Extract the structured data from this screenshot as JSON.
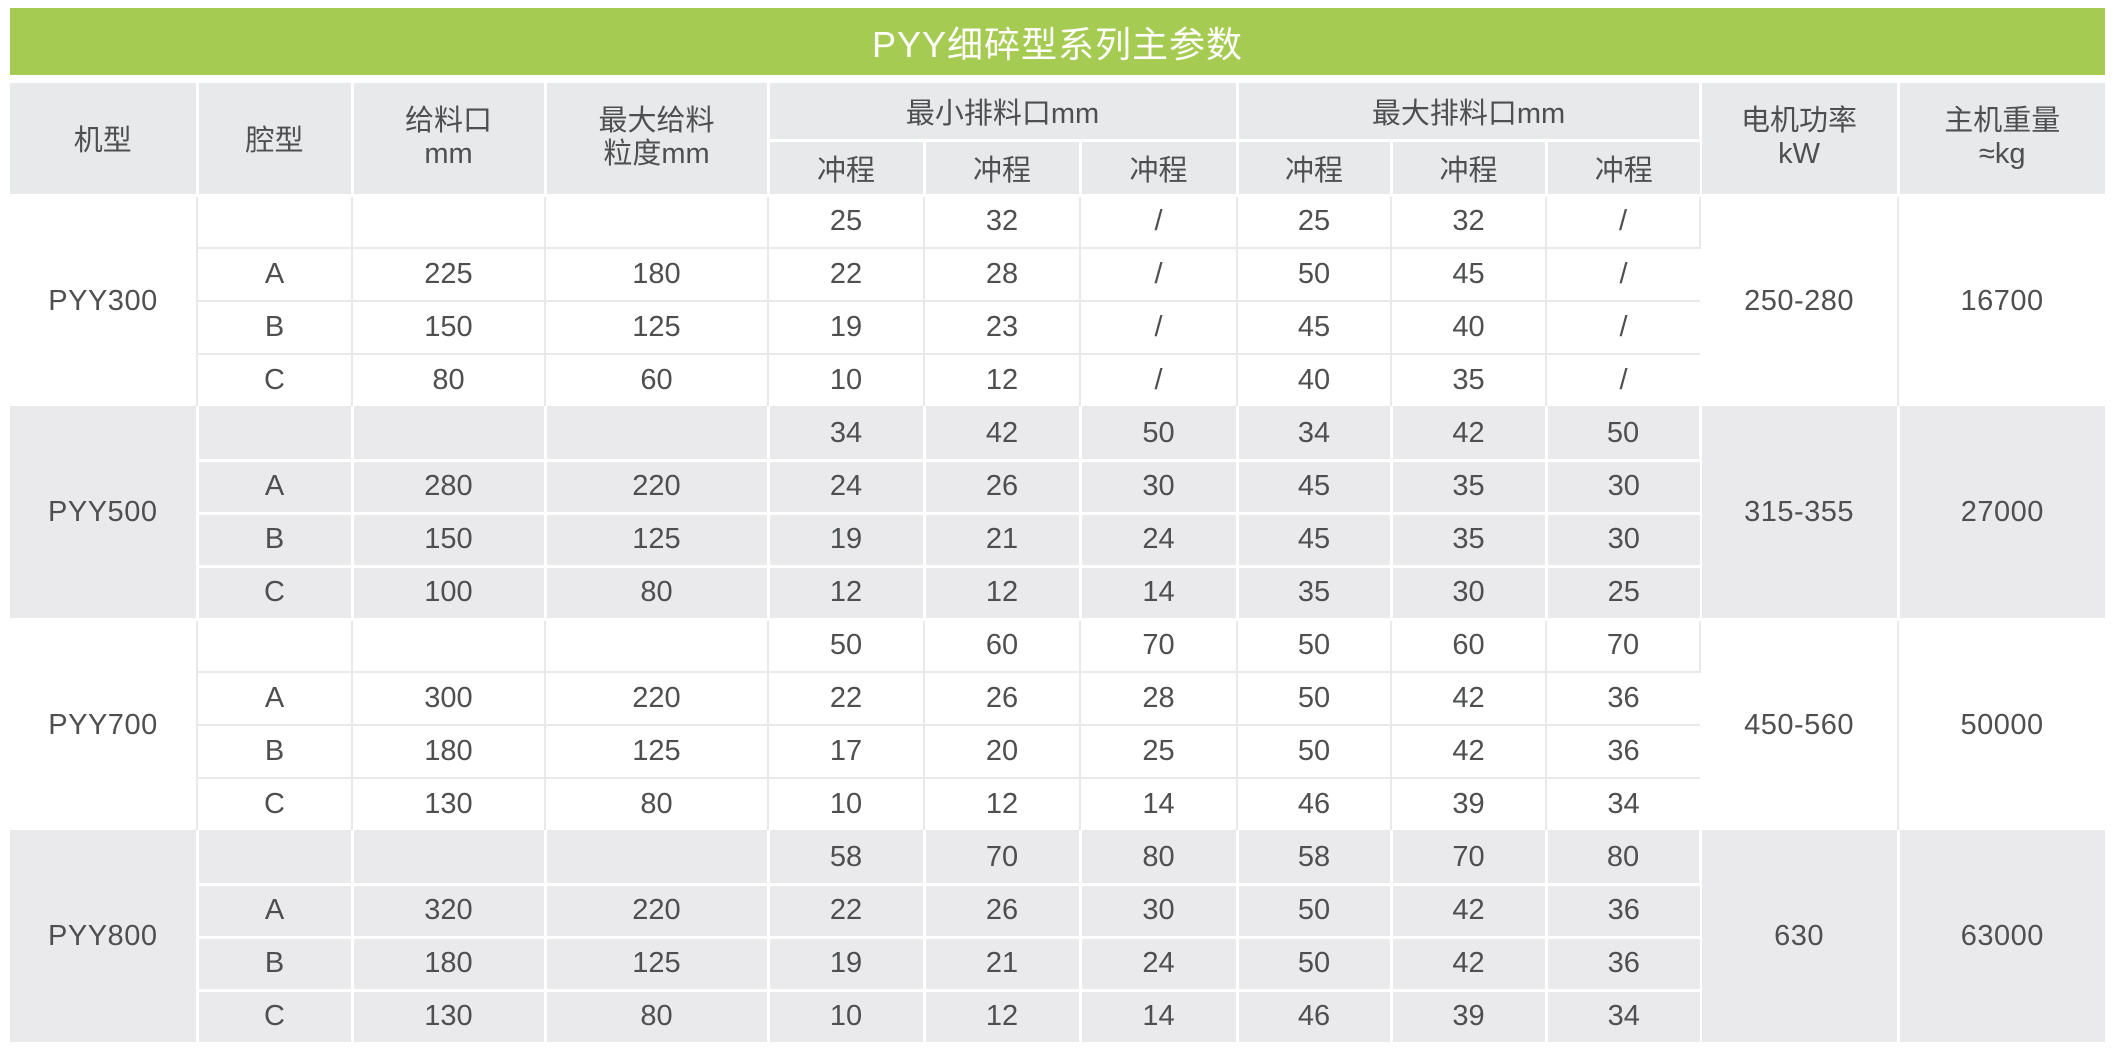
{
  "title": "PYY细碎型系列主参数",
  "colors": {
    "accent_green": "#a6cb52",
    "title_text": "#ffffff",
    "header_bg": "#e8e9eb",
    "shaded_row_bg": "#eaeaec",
    "text": "#4e4f51",
    "grid_line_on_white": "#e9e9ec",
    "grid_line_on_gray": "#ffffff"
  },
  "columns": {
    "model": "机型",
    "cavity": "腔型",
    "feed_opening": "给料口\nmm",
    "max_feed_size": "最大给料\n粒度mm",
    "min_discharge_group": "最小排料口mm",
    "max_discharge_group": "最大排料口mm",
    "stroke": "冲程",
    "motor_power": "电机功率\nkW",
    "weight": "主机重量\n≈kg"
  },
  "groups": [
    {
      "model": "PYY300",
      "power": "250-280",
      "weight": "16700",
      "rows": [
        {
          "cavity": "",
          "feed": "",
          "size": "",
          "min": [
            "25",
            "32",
            "/"
          ],
          "max": [
            "25",
            "32",
            "/"
          ]
        },
        {
          "cavity": "A",
          "feed": "225",
          "size": "180",
          "min": [
            "22",
            "28",
            "/"
          ],
          "max": [
            "50",
            "45",
            "/"
          ]
        },
        {
          "cavity": "B",
          "feed": "150",
          "size": "125",
          "min": [
            "19",
            "23",
            "/"
          ],
          "max": [
            "45",
            "40",
            "/"
          ]
        },
        {
          "cavity": "C",
          "feed": "80",
          "size": "60",
          "min": [
            "10",
            "12",
            "/"
          ],
          "max": [
            "40",
            "35",
            "/"
          ]
        }
      ]
    },
    {
      "model": "PYY500",
      "power": "315-355",
      "weight": "27000",
      "rows": [
        {
          "cavity": "",
          "feed": "",
          "size": "",
          "min": [
            "34",
            "42",
            "50"
          ],
          "max": [
            "34",
            "42",
            "50"
          ]
        },
        {
          "cavity": "A",
          "feed": "280",
          "size": "220",
          "min": [
            "24",
            "26",
            "30"
          ],
          "max": [
            "45",
            "35",
            "30"
          ]
        },
        {
          "cavity": "B",
          "feed": "150",
          "size": "125",
          "min": [
            "19",
            "21",
            "24"
          ],
          "max": [
            "45",
            "35",
            "30"
          ]
        },
        {
          "cavity": "C",
          "feed": "100",
          "size": "80",
          "min": [
            "12",
            "12",
            "14"
          ],
          "max": [
            "35",
            "30",
            "25"
          ]
        }
      ]
    },
    {
      "model": "PYY700",
      "power": "450-560",
      "weight": "50000",
      "rows": [
        {
          "cavity": "",
          "feed": "",
          "size": "",
          "min": [
            "50",
            "60",
            "70"
          ],
          "max": [
            "50",
            "60",
            "70"
          ]
        },
        {
          "cavity": "A",
          "feed": "300",
          "size": "220",
          "min": [
            "22",
            "26",
            "28"
          ],
          "max": [
            "50",
            "42",
            "36"
          ]
        },
        {
          "cavity": "B",
          "feed": "180",
          "size": "125",
          "min": [
            "17",
            "20",
            "25"
          ],
          "max": [
            "50",
            "42",
            "36"
          ]
        },
        {
          "cavity": "C",
          "feed": "130",
          "size": "80",
          "min": [
            "10",
            "12",
            "14"
          ],
          "max": [
            "46",
            "39",
            "34"
          ]
        }
      ]
    },
    {
      "model": "PYY800",
      "power": "630",
      "weight": "63000",
      "rows": [
        {
          "cavity": "",
          "feed": "",
          "size": "",
          "min": [
            "58",
            "70",
            "80"
          ],
          "max": [
            "58",
            "70",
            "80"
          ]
        },
        {
          "cavity": "A",
          "feed": "320",
          "size": "220",
          "min": [
            "22",
            "26",
            "30"
          ],
          "max": [
            "50",
            "42",
            "36"
          ]
        },
        {
          "cavity": "B",
          "feed": "180",
          "size": "125",
          "min": [
            "19",
            "21",
            "24"
          ],
          "max": [
            "50",
            "42",
            "36"
          ]
        },
        {
          "cavity": "C",
          "feed": "130",
          "size": "80",
          "min": [
            "10",
            "12",
            "14"
          ],
          "max": [
            "46",
            "39",
            "34"
          ]
        }
      ]
    }
  ]
}
